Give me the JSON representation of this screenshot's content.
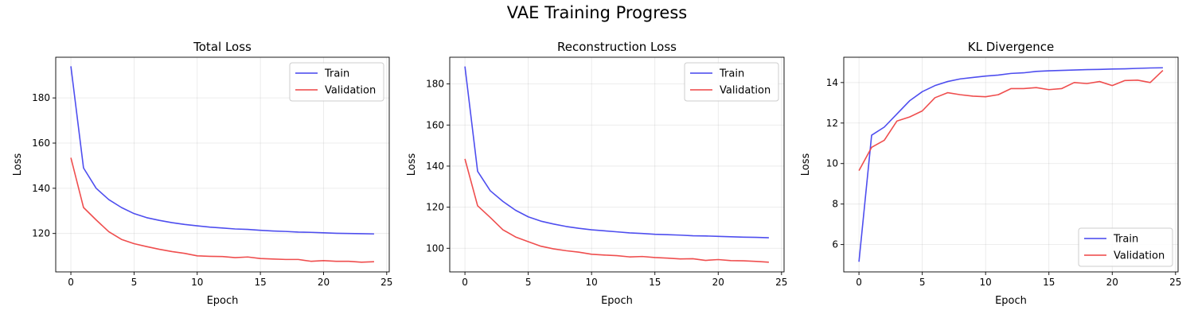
{
  "figure": {
    "title": "VAE Training Progress"
  },
  "chart_data": [
    {
      "type": "line",
      "title": "Total Loss",
      "xlabel": "Epoch",
      "ylabel": "Loss",
      "xlim": [
        -1.2,
        25.2
      ],
      "ylim": [
        103,
        198
      ],
      "xticks": [
        0,
        5,
        10,
        15,
        20,
        25
      ],
      "yticks": [
        120,
        140,
        160,
        180
      ],
      "grid": true,
      "legend_position": "upper right",
      "x": [
        0,
        1,
        2,
        3,
        4,
        5,
        6,
        7,
        8,
        9,
        10,
        11,
        12,
        13,
        14,
        15,
        16,
        17,
        18,
        19,
        20,
        21,
        22,
        23,
        24
      ],
      "series": [
        {
          "name": "Train",
          "color": "#4444ee",
          "values": [
            194.0,
            149.0,
            140.0,
            135.0,
            131.5,
            128.8,
            127.0,
            125.8,
            124.8,
            124.0,
            123.4,
            122.8,
            122.4,
            122.0,
            121.8,
            121.4,
            121.1,
            120.9,
            120.6,
            120.5,
            120.3,
            120.1,
            120.0,
            119.9,
            119.8
          ]
        },
        {
          "name": "Validation",
          "color": "#ee4444",
          "values": [
            153.5,
            131.5,
            126.0,
            120.8,
            117.4,
            115.5,
            114.2,
            113.0,
            112.0,
            111.2,
            110.1,
            109.9,
            109.8,
            109.3,
            109.6,
            108.9,
            108.7,
            108.5,
            108.5,
            107.7,
            108.0,
            107.7,
            107.7,
            107.3,
            107.5
          ]
        }
      ]
    },
    {
      "type": "line",
      "title": "Reconstruction Loss",
      "xlabel": "Epoch",
      "ylabel": "Loss",
      "xlim": [
        -1.2,
        25.2
      ],
      "ylim": [
        88.5,
        193
      ],
      "xticks": [
        0,
        5,
        10,
        15,
        20,
        25
      ],
      "yticks": [
        100,
        120,
        140,
        160,
        180
      ],
      "grid": true,
      "legend_position": "upper right",
      "x": [
        0,
        1,
        2,
        3,
        4,
        5,
        6,
        7,
        8,
        9,
        10,
        11,
        12,
        13,
        14,
        15,
        16,
        17,
        18,
        19,
        20,
        21,
        22,
        23,
        24
      ],
      "series": [
        {
          "name": "Train",
          "color": "#4444ee",
          "values": [
            188.5,
            137.5,
            128.0,
            122.8,
            118.5,
            115.3,
            113.2,
            111.8,
            110.6,
            109.7,
            109.0,
            108.5,
            108.0,
            107.5,
            107.2,
            106.8,
            106.6,
            106.4,
            106.1,
            106.0,
            105.8,
            105.6,
            105.4,
            105.3,
            105.1
          ]
        },
        {
          "name": "Validation",
          "color": "#ee4444",
          "values": [
            143.5,
            120.7,
            115.0,
            109.0,
            105.5,
            103.2,
            101.0,
            99.7,
            98.8,
            98.1,
            97.1,
            96.7,
            96.4,
            95.8,
            96.0,
            95.5,
            95.2,
            94.8,
            94.9,
            94.1,
            94.5,
            94.0,
            93.9,
            93.6,
            93.2
          ]
        }
      ]
    },
    {
      "type": "line",
      "title": "KL Divergence",
      "xlabel": "Epoch",
      "ylabel": "Loss",
      "xlim": [
        -1.2,
        25.2
      ],
      "ylim": [
        4.65,
        15.25
      ],
      "xticks": [
        0,
        5,
        10,
        15,
        20,
        25
      ],
      "yticks": [
        6,
        8,
        10,
        12,
        14
      ],
      "grid": true,
      "legend_position": "lower right",
      "x": [
        0,
        1,
        2,
        3,
        4,
        5,
        6,
        7,
        8,
        9,
        10,
        11,
        12,
        13,
        14,
        15,
        16,
        17,
        18,
        19,
        20,
        21,
        22,
        23,
        24
      ],
      "series": [
        {
          "name": "Train",
          "color": "#4444ee",
          "values": [
            5.15,
            11.4,
            11.8,
            12.45,
            13.1,
            13.55,
            13.85,
            14.05,
            14.18,
            14.25,
            14.32,
            14.37,
            14.45,
            14.48,
            14.55,
            14.58,
            14.6,
            14.62,
            14.64,
            14.65,
            14.67,
            14.68,
            14.7,
            14.72,
            14.73
          ]
        },
        {
          "name": "Validation",
          "color": "#ee4444",
          "values": [
            9.65,
            10.8,
            11.15,
            12.1,
            12.3,
            12.6,
            13.25,
            13.5,
            13.4,
            13.33,
            13.3,
            13.4,
            13.7,
            13.7,
            13.75,
            13.65,
            13.7,
            14.0,
            13.95,
            14.05,
            13.85,
            14.1,
            14.12,
            14.0,
            14.6
          ]
        }
      ]
    }
  ]
}
